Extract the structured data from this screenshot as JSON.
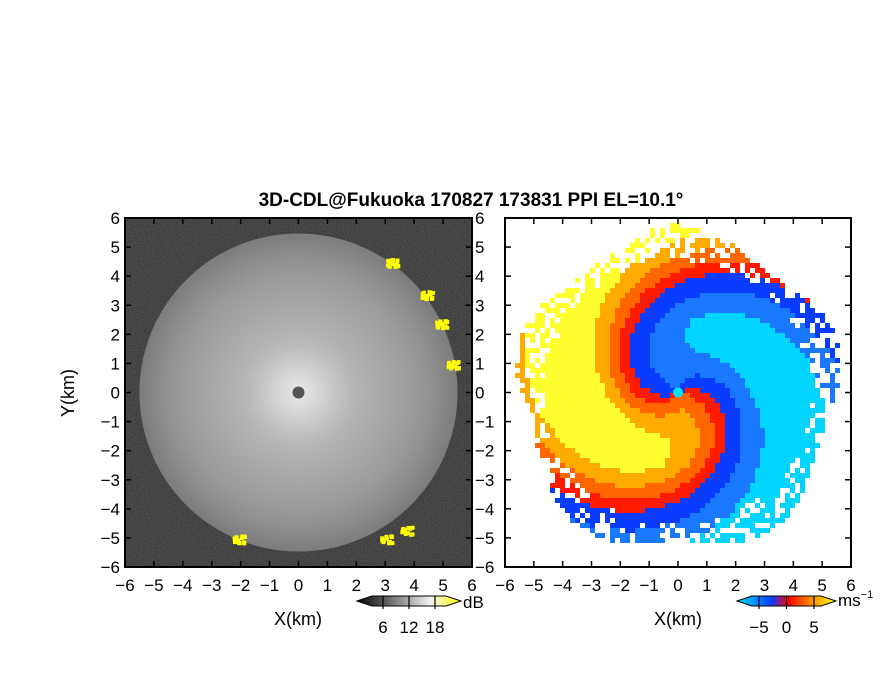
{
  "title": "3D-CDL@Fukuoka 170827 173831 PPI EL=10.1°",
  "chart_data": [
    {
      "type": "heatmap",
      "panel": "left",
      "quantity": "reflectivity",
      "xlabel": "X(km)",
      "ylabel": "Y(km)",
      "xlim": [
        -6,
        6
      ],
      "ylim": [
        -6,
        6
      ],
      "xticks": [
        "−6",
        "−5",
        "−4",
        "−3",
        "−2",
        "−1",
        "0",
        "1",
        "2",
        "3",
        "4",
        "5",
        "6"
      ],
      "yticks": [
        "6",
        "5",
        "4",
        "3",
        "2",
        "1",
        "0",
        "−1",
        "−2",
        "−3",
        "−4",
        "−5",
        "−6"
      ],
      "radius_km": 5.5,
      "colorbar": {
        "unit": "dB",
        "ticks": [
          "6",
          "12",
          "18"
        ],
        "tick_values": [
          6,
          12,
          18
        ],
        "range": [
          0,
          24
        ],
        "colors": [
          "#000000",
          "#ffffff",
          "#ffff00"
        ]
      }
    },
    {
      "type": "heatmap",
      "panel": "right",
      "quantity": "doppler velocity",
      "xlabel": "X(km)",
      "ylabel": "",
      "xlim": [
        -6,
        6
      ],
      "ylim": [
        -6,
        6
      ],
      "xticks": [
        "−6",
        "−5",
        "−4",
        "−3",
        "−2",
        "−1",
        "0",
        "1",
        "2",
        "3",
        "4",
        "5",
        "6"
      ],
      "yticks": [
        "6",
        "5",
        "4",
        "3",
        "2",
        "1",
        "0",
        "−1",
        "−2",
        "−3",
        "−4",
        "−5",
        "−6"
      ],
      "radius_km": 5.5,
      "colorbar": {
        "unit": "ms",
        "unit_exponent": "−1",
        "ticks": [
          "−5",
          "0",
          "5"
        ],
        "tick_values": [
          -5,
          0,
          5
        ],
        "range": [
          -9,
          9
        ],
        "colors": [
          "#00e5ff",
          "#0a3cff",
          "#ff0000",
          "#ff8c00",
          "#ffff00"
        ]
      }
    }
  ]
}
